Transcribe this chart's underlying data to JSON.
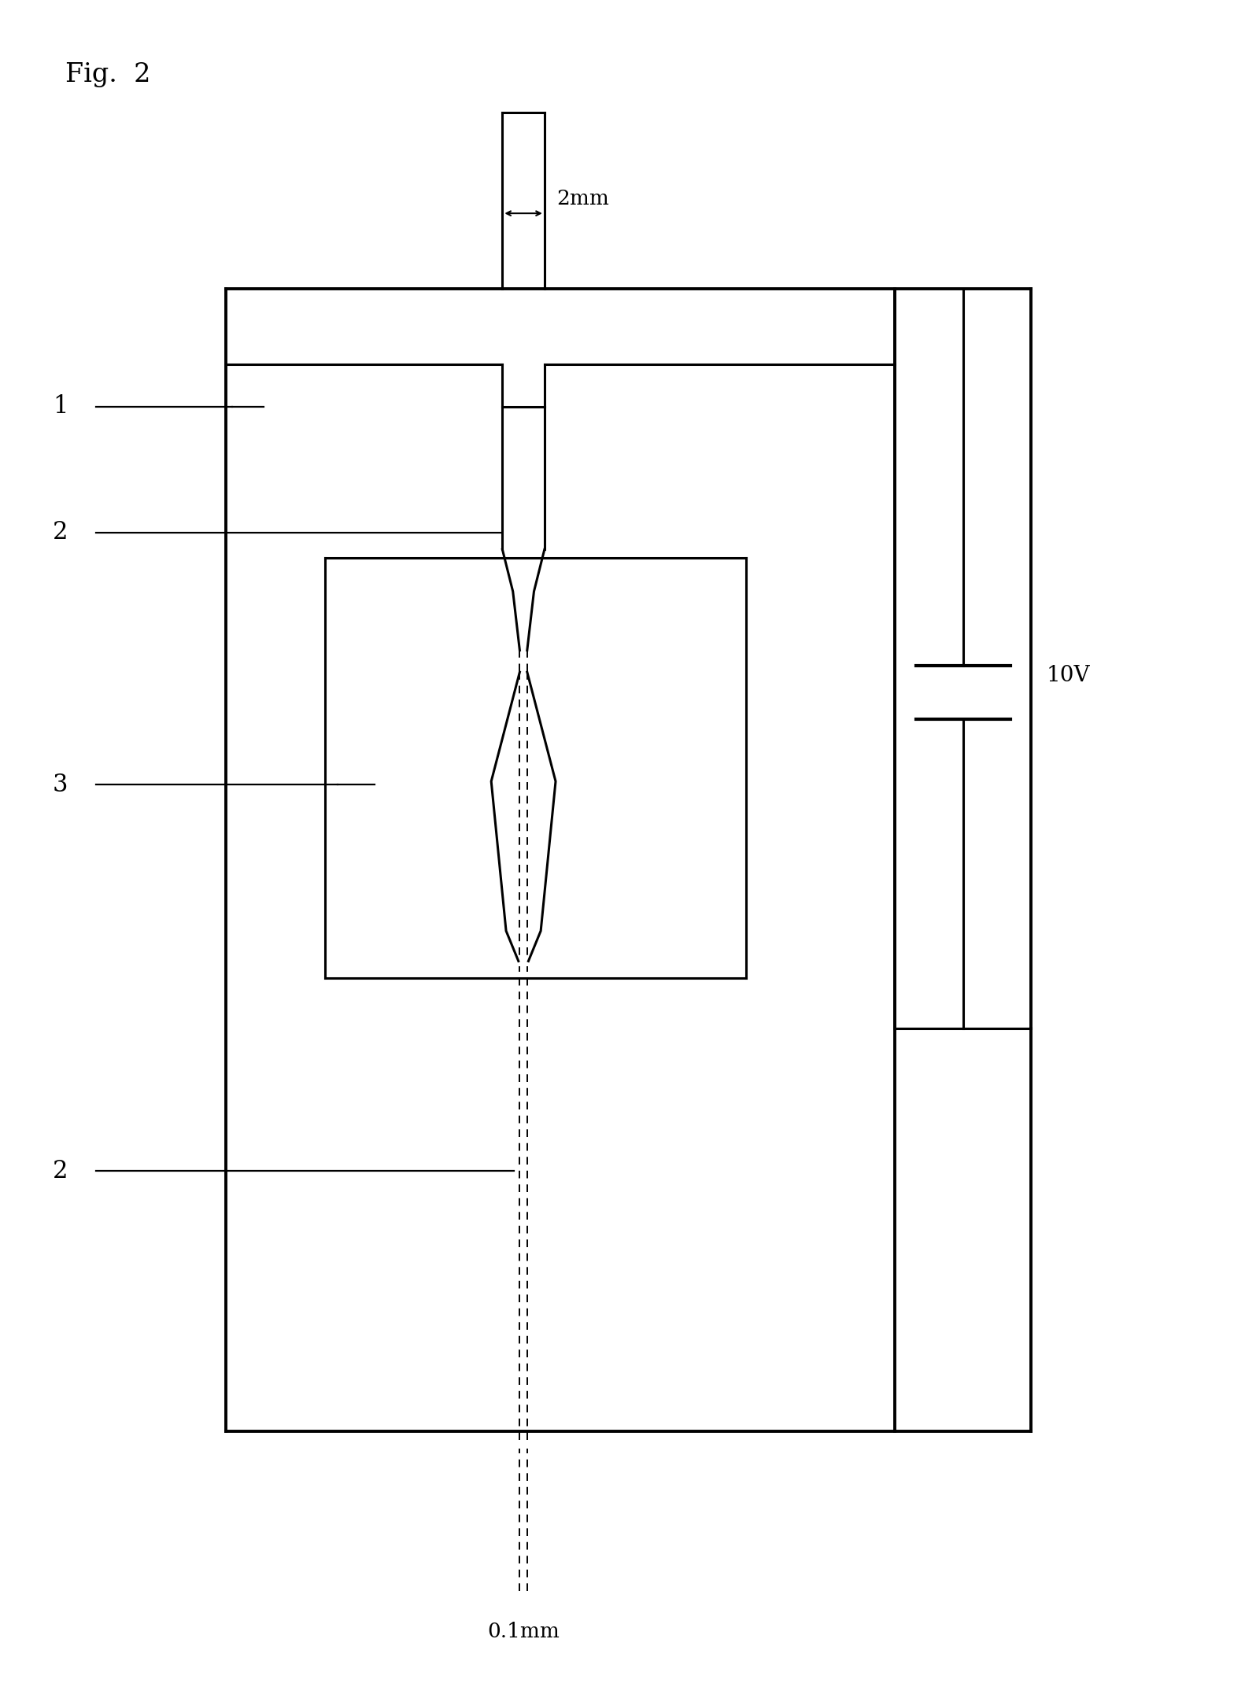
{
  "fig_label": "Fig.  2",
  "background_color": "#ffffff",
  "line_color": "#000000",
  "label_1": "1",
  "label_2": "2",
  "label_3": "3",
  "label_10v": "10V",
  "label_2mm": "2mm",
  "label_01mm": "0.1mm",
  "figsize": [
    15.82,
    21.44
  ],
  "dpi": 100
}
